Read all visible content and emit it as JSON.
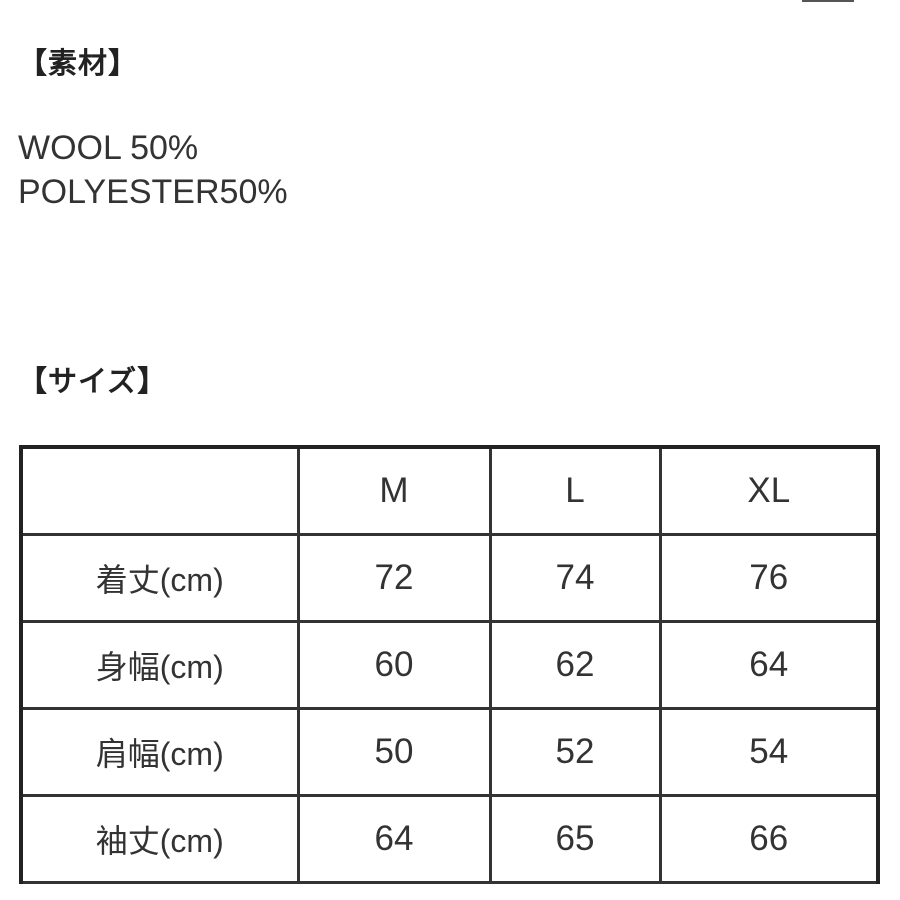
{
  "material": {
    "heading": "【素材】",
    "lines": [
      "WOOL 50%",
      "POLYESTER50%"
    ]
  },
  "size": {
    "heading": "【サイズ】",
    "table": {
      "header": [
        "",
        "M",
        "L",
        "XL"
      ],
      "rows": [
        [
          "着丈(cm)",
          "72",
          "74",
          "76"
        ],
        [
          "身幅(cm)",
          "60",
          "62",
          "64"
        ],
        [
          "肩幅(cm)",
          "50",
          "52",
          "54"
        ],
        [
          "袖丈(cm)",
          "64",
          "65",
          "66"
        ]
      ]
    }
  }
}
